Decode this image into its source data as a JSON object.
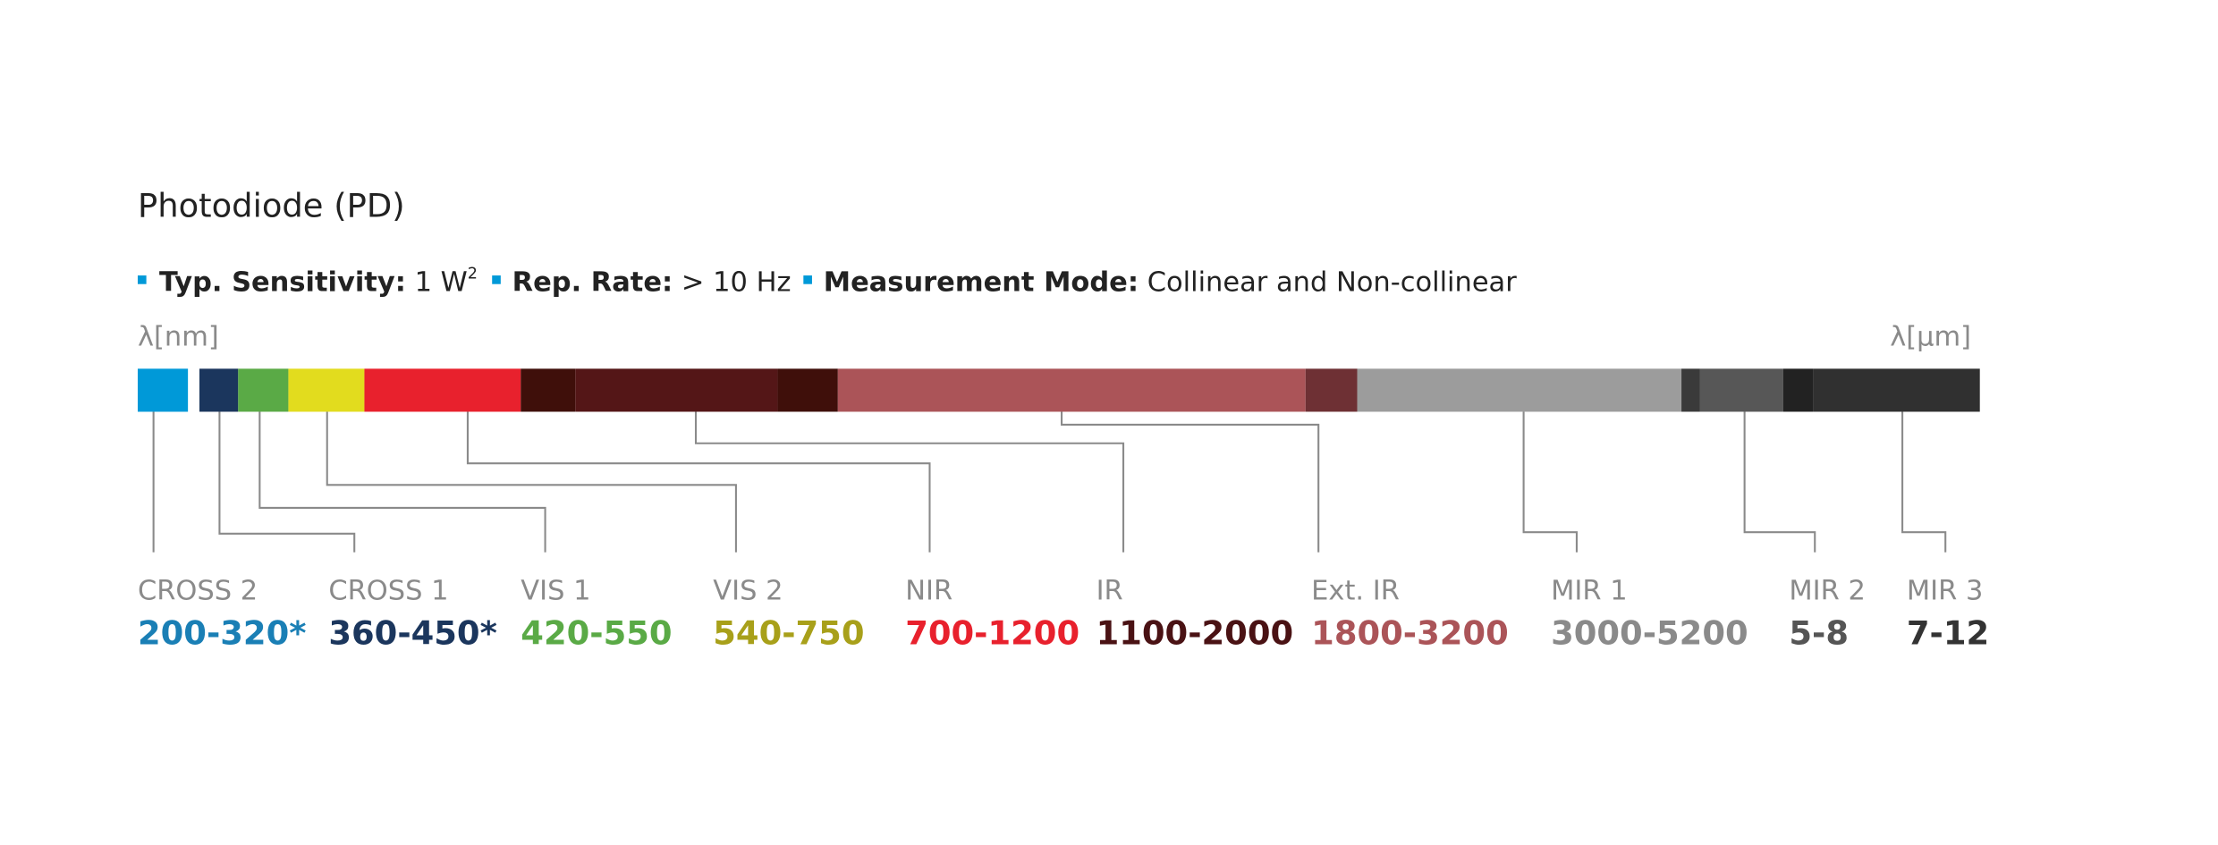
{
  "title": "Photodiode (PD)",
  "specs": [
    {
      "label": "Typ. Sensitivity:",
      "value": "1 W",
      "sup": "2"
    },
    {
      "label": "Rep. Rate:",
      "value": "> 10 Hz"
    },
    {
      "label": "Measurement Mode:",
      "value": "Collinear and Non-collinear"
    }
  ],
  "axis": {
    "left": "λ[nm]",
    "right": "λ[µm]"
  },
  "bands": [
    {
      "name": "CROSS 2",
      "range": "200-320*"
    },
    {
      "name": "CROSS 1",
      "range": "360-450*"
    },
    {
      "name": "VIS 1",
      "range": "420-550"
    },
    {
      "name": "VIS 2",
      "range": "540-750"
    },
    {
      "name": "NIR",
      "range": "700-1200"
    },
    {
      "name": "IR",
      "range": "1100-2000"
    },
    {
      "name": "Ext. IR",
      "range": "1800-3200"
    },
    {
      "name": "MIR 1",
      "range": "3000-5200"
    },
    {
      "name": "MIR 2",
      "range": "5-8"
    },
    {
      "name": "MIR 3",
      "range": "7-12"
    }
  ]
}
